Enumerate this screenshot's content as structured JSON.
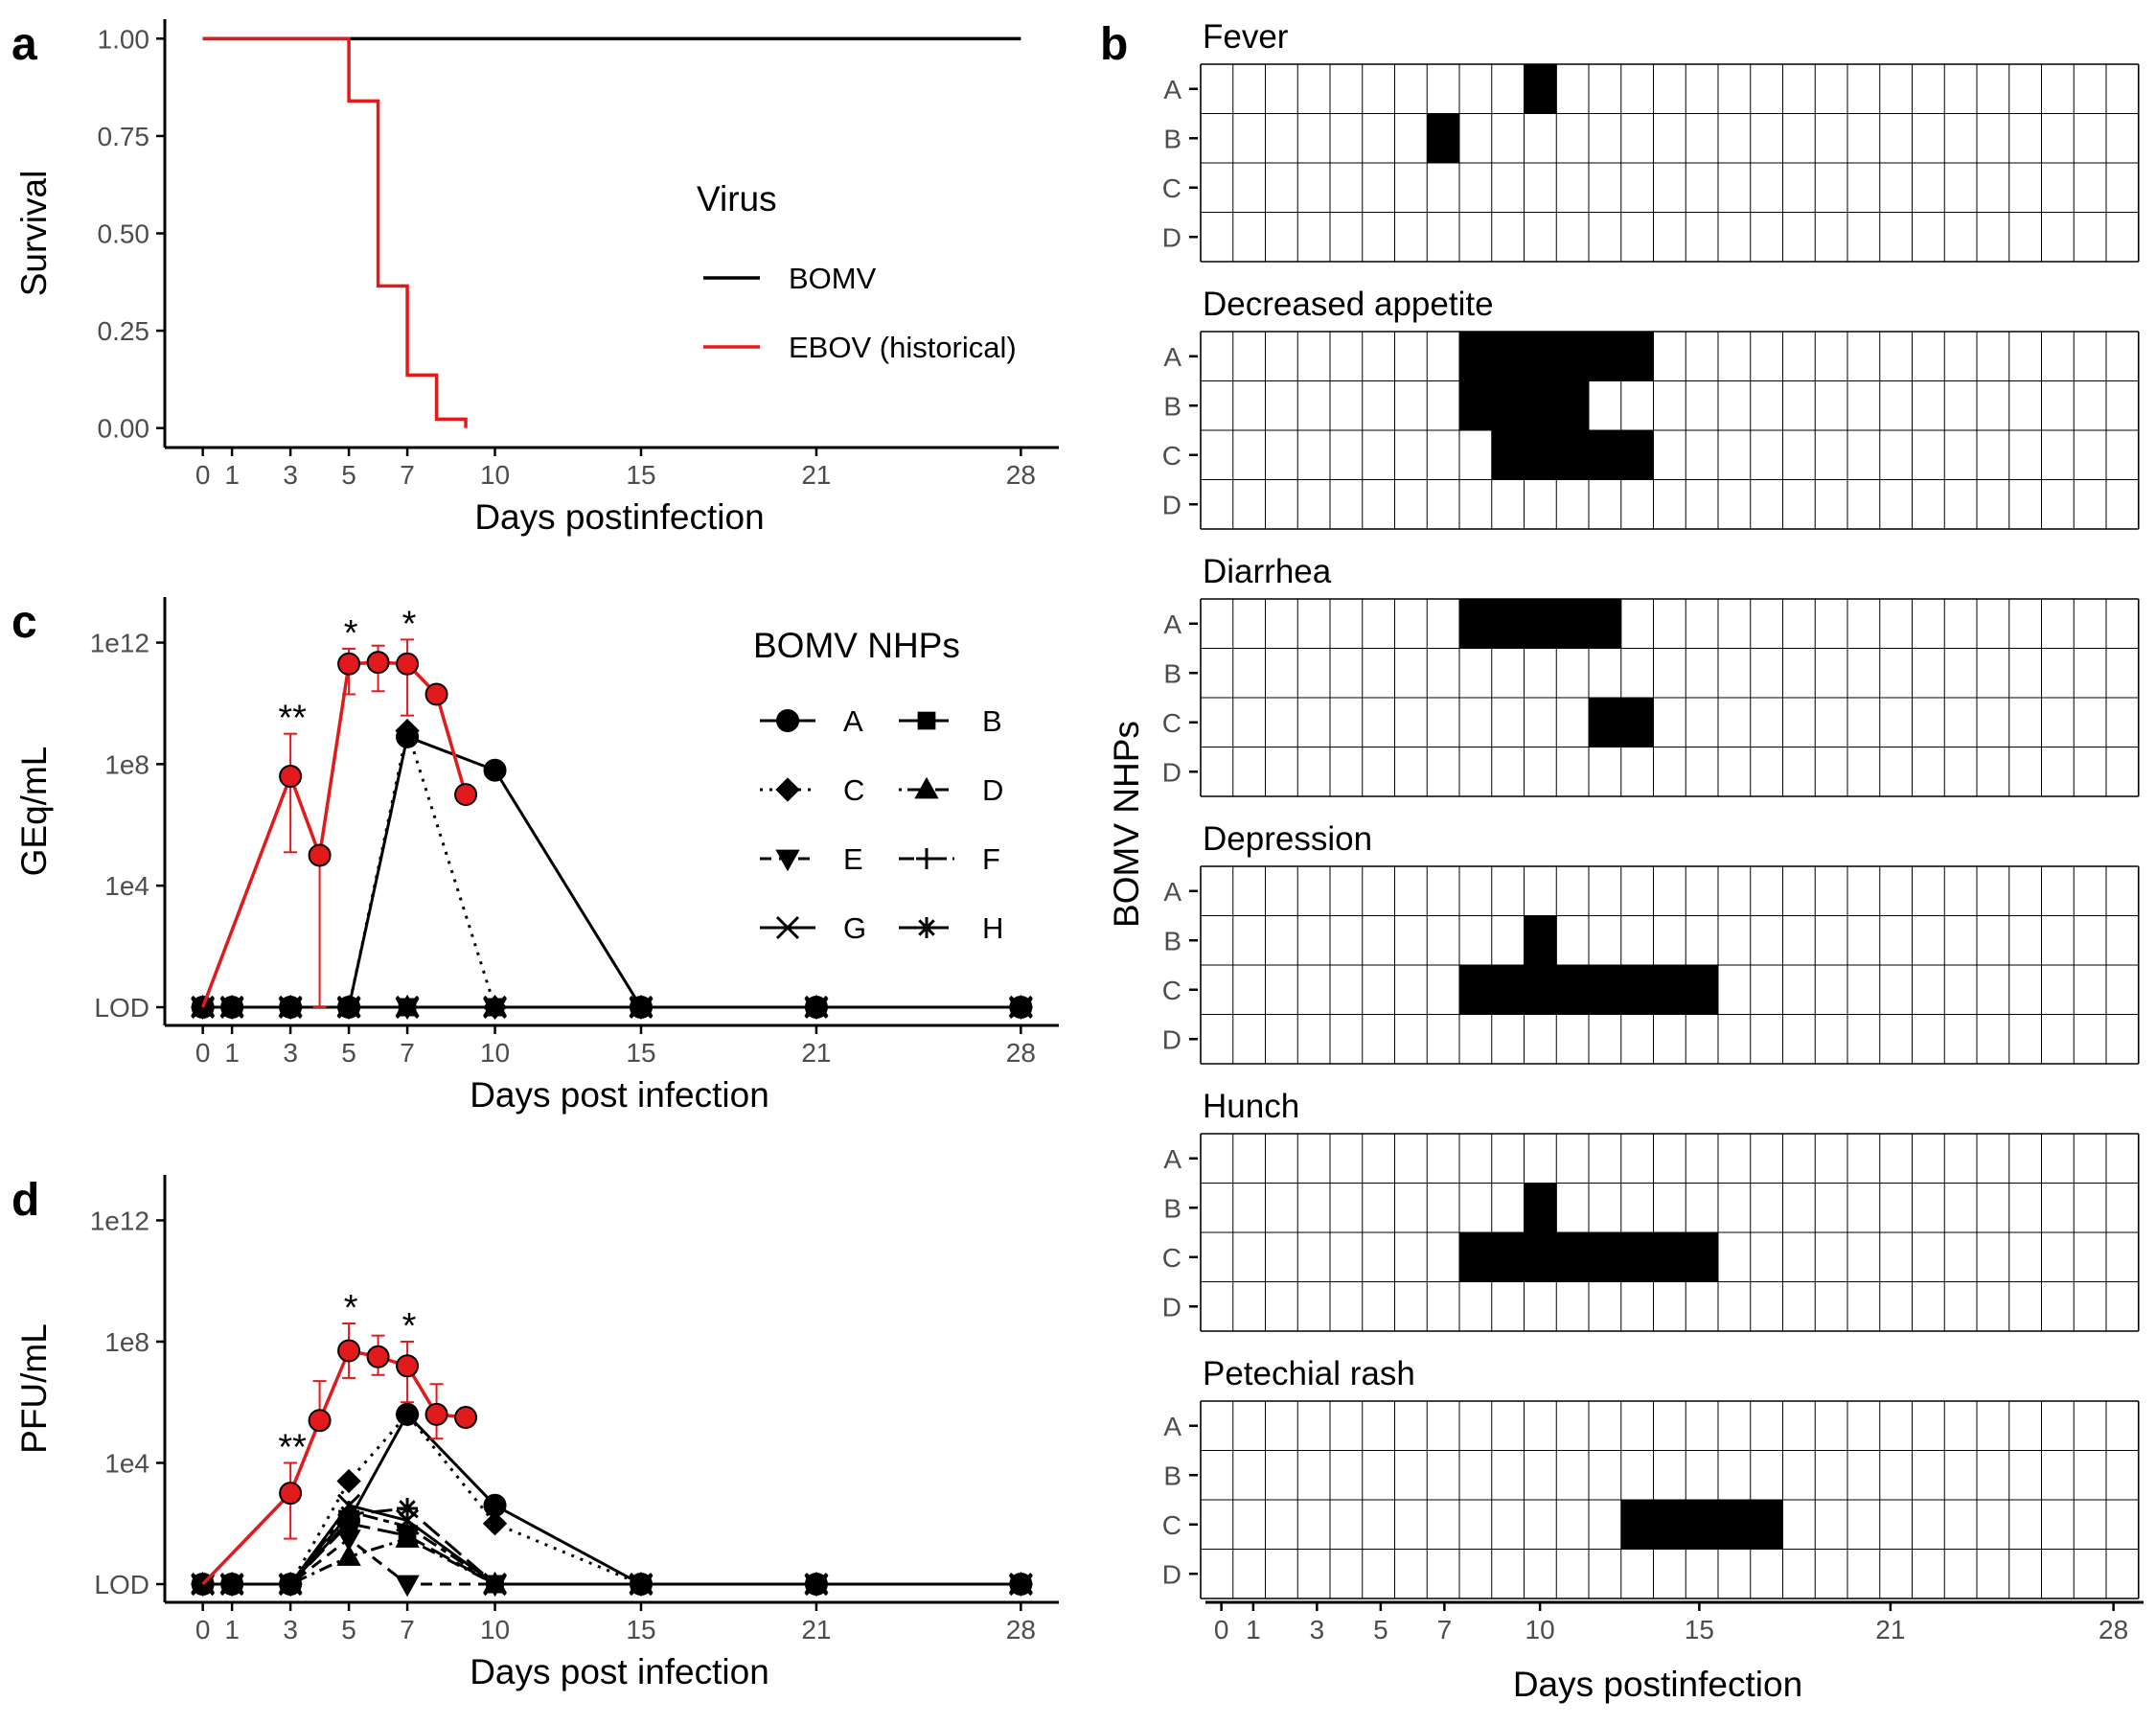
{
  "panel_labels": {
    "a": "a",
    "b": "b",
    "c": "c",
    "d": "d"
  },
  "colors": {
    "bomv": "#000000",
    "ebov": "#e31a1c",
    "axis": "#000000",
    "tick_text": "#4d4d4d",
    "grid": "#000000",
    "fill": "#000000"
  },
  "chart_data": [
    {
      "panel": "a",
      "type": "line",
      "subtype": "step",
      "xlabel": "Days postinfection",
      "ylabel": "Survival",
      "xticks": [
        0,
        1,
        3,
        5,
        7,
        10,
        15,
        21,
        28
      ],
      "yticks": [
        0.0,
        0.25,
        0.5,
        0.75,
        1.0
      ],
      "ytick_labels": [
        "0.00",
        "0.25",
        "0.50",
        "0.75",
        "1.00"
      ],
      "xlim": [
        -1.3,
        29.3
      ],
      "ylim": [
        -0.05,
        1.05
      ],
      "legend": {
        "title": "Virus",
        "position": "right"
      },
      "series": [
        {
          "name": "BOMV",
          "color": "#000000",
          "points": [
            [
              0,
              1.0
            ],
            [
              28,
              1.0
            ]
          ]
        },
        {
          "name": "EBOV (historical)",
          "color": "#e31a1c",
          "points": [
            [
              0,
              1.0
            ],
            [
              5,
              1.0
            ],
            [
              5,
              0.84
            ],
            [
              6,
              0.84
            ],
            [
              6,
              0.365
            ],
            [
              7,
              0.365
            ],
            [
              7,
              0.136
            ],
            [
              8,
              0.136
            ],
            [
              8,
              0.023
            ],
            [
              9,
              0.023
            ],
            [
              9,
              0.0
            ]
          ]
        }
      ]
    },
    {
      "panel": "b",
      "type": "heatmap",
      "xlabel": "Days postinfection",
      "ylabel": "BOMV NHPs",
      "xticks": [
        0,
        1,
        3,
        5,
        7,
        10,
        15,
        21,
        28
      ],
      "rows": [
        "A",
        "B",
        "C",
        "D"
      ],
      "days": [
        0,
        28
      ],
      "facets": [
        {
          "title": "Fever",
          "filled": {
            "A": [
              [
                10,
                10
              ]
            ],
            "B": [
              [
                7,
                7
              ]
            ],
            "C": [],
            "D": []
          }
        },
        {
          "title": "Decreased appetite",
          "filled": {
            "A": [
              [
                8,
                13
              ]
            ],
            "B": [
              [
                8,
                11
              ]
            ],
            "C": [
              [
                9,
                13
              ]
            ],
            "D": []
          }
        },
        {
          "title": "Diarrhea",
          "filled": {
            "A": [
              [
                8,
                12
              ]
            ],
            "B": [],
            "C": [
              [
                12,
                13
              ]
            ],
            "D": []
          }
        },
        {
          "title": "Depression",
          "filled": {
            "A": [],
            "B": [
              [
                10,
                10
              ]
            ],
            "C": [
              [
                8,
                15
              ]
            ],
            "D": []
          }
        },
        {
          "title": "Hunch",
          "filled": {
            "A": [],
            "B": [
              [
                10,
                10
              ]
            ],
            "C": [
              [
                8,
                15
              ]
            ],
            "D": []
          }
        },
        {
          "title": "Petechial rash",
          "filled": {
            "A": [],
            "B": [],
            "C": [
              [
                13,
                17
              ]
            ],
            "D": []
          }
        }
      ]
    },
    {
      "panel": "c",
      "type": "line",
      "scale": "log10",
      "xlabel": "Days post infection",
      "ylabel": "GEq/mL",
      "xticks": [
        0,
        1,
        3,
        5,
        7,
        10,
        15,
        21,
        28
      ],
      "ytick_labels": [
        "LOD",
        "1e4",
        "1e8",
        "1e12"
      ],
      "ytick_values_log10": [
        0,
        4,
        8,
        12
      ],
      "ylim_log10": [
        -0.6,
        13.5
      ],
      "legend": {
        "title": "BOMV NHPs",
        "position": "top-right",
        "entries": [
          "A",
          "B",
          "C",
          "D",
          "E",
          "F",
          "G",
          "H"
        ]
      },
      "series": [
        {
          "name": "A",
          "marker": "circle",
          "dash": "solid",
          "x": [
            0,
            1,
            3,
            5,
            7,
            10,
            15,
            21,
            28
          ],
          "y_log10": [
            0,
            0,
            0,
            0,
            8.9,
            7.8,
            0,
            0,
            0
          ]
        },
        {
          "name": "B",
          "marker": "square",
          "dash": "longdash",
          "x": [
            0,
            1,
            3,
            5,
            7,
            10,
            15,
            21,
            28
          ],
          "y_log10": [
            0,
            0,
            0,
            0,
            0,
            0,
            0,
            0,
            0
          ]
        },
        {
          "name": "C",
          "marker": "diamond",
          "dash": "dotted",
          "x": [
            0,
            1,
            3,
            5,
            7,
            10,
            15,
            21,
            28
          ],
          "y_log10": [
            0,
            0,
            0,
            0,
            9.1,
            0,
            0,
            0,
            0
          ]
        },
        {
          "name": "D",
          "marker": "triangle",
          "dash": "dotdash",
          "x": [
            0,
            1,
            3,
            5,
            7,
            10,
            15,
            21,
            28
          ],
          "y_log10": [
            0,
            0,
            0,
            0,
            0,
            0,
            0,
            0,
            0
          ]
        },
        {
          "name": "E",
          "marker": "triangle-down",
          "dash": "dashed",
          "x": [
            0,
            1,
            3,
            5,
            7,
            10,
            15,
            21,
            28
          ],
          "y_log10": [
            0,
            0,
            0,
            0,
            0,
            0,
            0,
            0,
            0
          ]
        },
        {
          "name": "F",
          "marker": "plus",
          "dash": "twodash",
          "x": [
            0,
            1,
            3,
            5,
            7,
            10,
            15,
            21,
            28
          ],
          "y_log10": [
            0,
            0,
            0,
            0,
            0,
            0,
            0,
            0,
            0
          ]
        },
        {
          "name": "G",
          "marker": "cross",
          "dash": "solid",
          "x": [
            0,
            1,
            3,
            5,
            7,
            10,
            15,
            21,
            28
          ],
          "y_log10": [
            0,
            0,
            0,
            0,
            0,
            0,
            0,
            0,
            0
          ]
        },
        {
          "name": "H",
          "marker": "asterisk",
          "dash": "longdash",
          "x": [
            0,
            1,
            3,
            5,
            7,
            10,
            15,
            21,
            28
          ],
          "y_log10": [
            0,
            0,
            0,
            0,
            0,
            0,
            0,
            0,
            0
          ]
        }
      ],
      "ebov_historical": {
        "color": "#e31a1c",
        "x": [
          0,
          3,
          4,
          5,
          6,
          7,
          8,
          9
        ],
        "y_log10": [
          0,
          7.6,
          5.0,
          11.3,
          11.35,
          11.3,
          10.3,
          7.0
        ],
        "err_low_log10": [
          null,
          5.1,
          0,
          10.3,
          10.4,
          9.6,
          null,
          null
        ],
        "err_high_log10": [
          null,
          9.0,
          null,
          11.8,
          11.9,
          12.1,
          null,
          null
        ]
      },
      "significance": [
        {
          "x": 3,
          "label": "**"
        },
        {
          "x": 5,
          "label": "*"
        },
        {
          "x": 7,
          "label": "*"
        }
      ]
    },
    {
      "panel": "d",
      "type": "line",
      "scale": "log10",
      "xlabel": "Days post infection",
      "ylabel": "PFU/mL",
      "xticks": [
        0,
        1,
        3,
        5,
        7,
        10,
        15,
        21,
        28
      ],
      "ytick_labels": [
        "LOD",
        "1e4",
        "1e8",
        "1e12"
      ],
      "ytick_values_log10": [
        0,
        4,
        8,
        12
      ],
      "ylim_log10": [
        -0.6,
        13.5
      ],
      "series": [
        {
          "name": "A",
          "marker": "circle",
          "dash": "solid",
          "x": [
            0,
            1,
            3,
            5,
            7,
            10,
            15,
            21,
            28
          ],
          "y_log10": [
            0,
            0,
            0,
            2.1,
            5.6,
            2.6,
            0,
            0,
            0
          ]
        },
        {
          "name": "B",
          "marker": "square",
          "dash": "longdash",
          "x": [
            0,
            1,
            3,
            5,
            7,
            10,
            15,
            21,
            28
          ],
          "y_log10": [
            0,
            0,
            0,
            2.0,
            1.6,
            0,
            0,
            0,
            0
          ]
        },
        {
          "name": "C",
          "marker": "diamond",
          "dash": "dotted",
          "x": [
            0,
            1,
            3,
            5,
            7,
            10,
            15,
            21,
            28
          ],
          "y_log10": [
            0,
            0,
            0,
            3.4,
            5.6,
            2.0,
            0,
            0,
            0
          ]
        },
        {
          "name": "D",
          "marker": "triangle",
          "dash": "dotdash",
          "x": [
            0,
            1,
            3,
            5,
            7,
            10,
            15,
            21,
            28
          ],
          "y_log10": [
            0,
            0,
            0,
            0.9,
            1.5,
            0,
            0,
            0,
            0
          ]
        },
        {
          "name": "E",
          "marker": "triangle-down",
          "dash": "dashed",
          "x": [
            0,
            1,
            3,
            5,
            7,
            10,
            15,
            21,
            28
          ],
          "y_log10": [
            0,
            0,
            0,
            1.5,
            0,
            0,
            0,
            0,
            0
          ]
        },
        {
          "name": "F",
          "marker": "plus",
          "dash": "twodash",
          "x": [
            0,
            1,
            3,
            5,
            7,
            10,
            15,
            21,
            28
          ],
          "y_log10": [
            0,
            0,
            0,
            2.4,
            1.9,
            0,
            0,
            0,
            0
          ]
        },
        {
          "name": "G",
          "marker": "cross",
          "dash": "solid",
          "x": [
            0,
            1,
            3,
            5,
            7,
            10,
            15,
            21,
            28
          ],
          "y_log10": [
            0,
            0,
            0,
            2.6,
            2.1,
            0,
            0,
            0,
            0
          ]
        },
        {
          "name": "H",
          "marker": "asterisk",
          "dash": "longdash",
          "x": [
            0,
            1,
            3,
            5,
            7,
            10,
            15,
            21,
            28
          ],
          "y_log10": [
            0,
            0,
            0,
            2.3,
            2.5,
            0,
            0,
            0,
            0
          ]
        }
      ],
      "ebov_historical": {
        "color": "#e31a1c",
        "x": [
          0,
          3,
          4,
          5,
          6,
          7,
          8,
          9
        ],
        "y_log10": [
          0,
          3.0,
          5.4,
          7.7,
          7.5,
          7.2,
          5.6,
          5.5
        ],
        "err_low_log10": [
          null,
          1.5,
          null,
          6.8,
          6.9,
          6.0,
          4.8,
          null
        ],
        "err_high_log10": [
          null,
          4.0,
          6.7,
          8.6,
          8.2,
          8.0,
          6.6,
          null
        ]
      },
      "significance": [
        {
          "x": 3,
          "label": "**"
        },
        {
          "x": 5,
          "label": "*"
        },
        {
          "x": 7,
          "label": "*"
        }
      ]
    }
  ]
}
